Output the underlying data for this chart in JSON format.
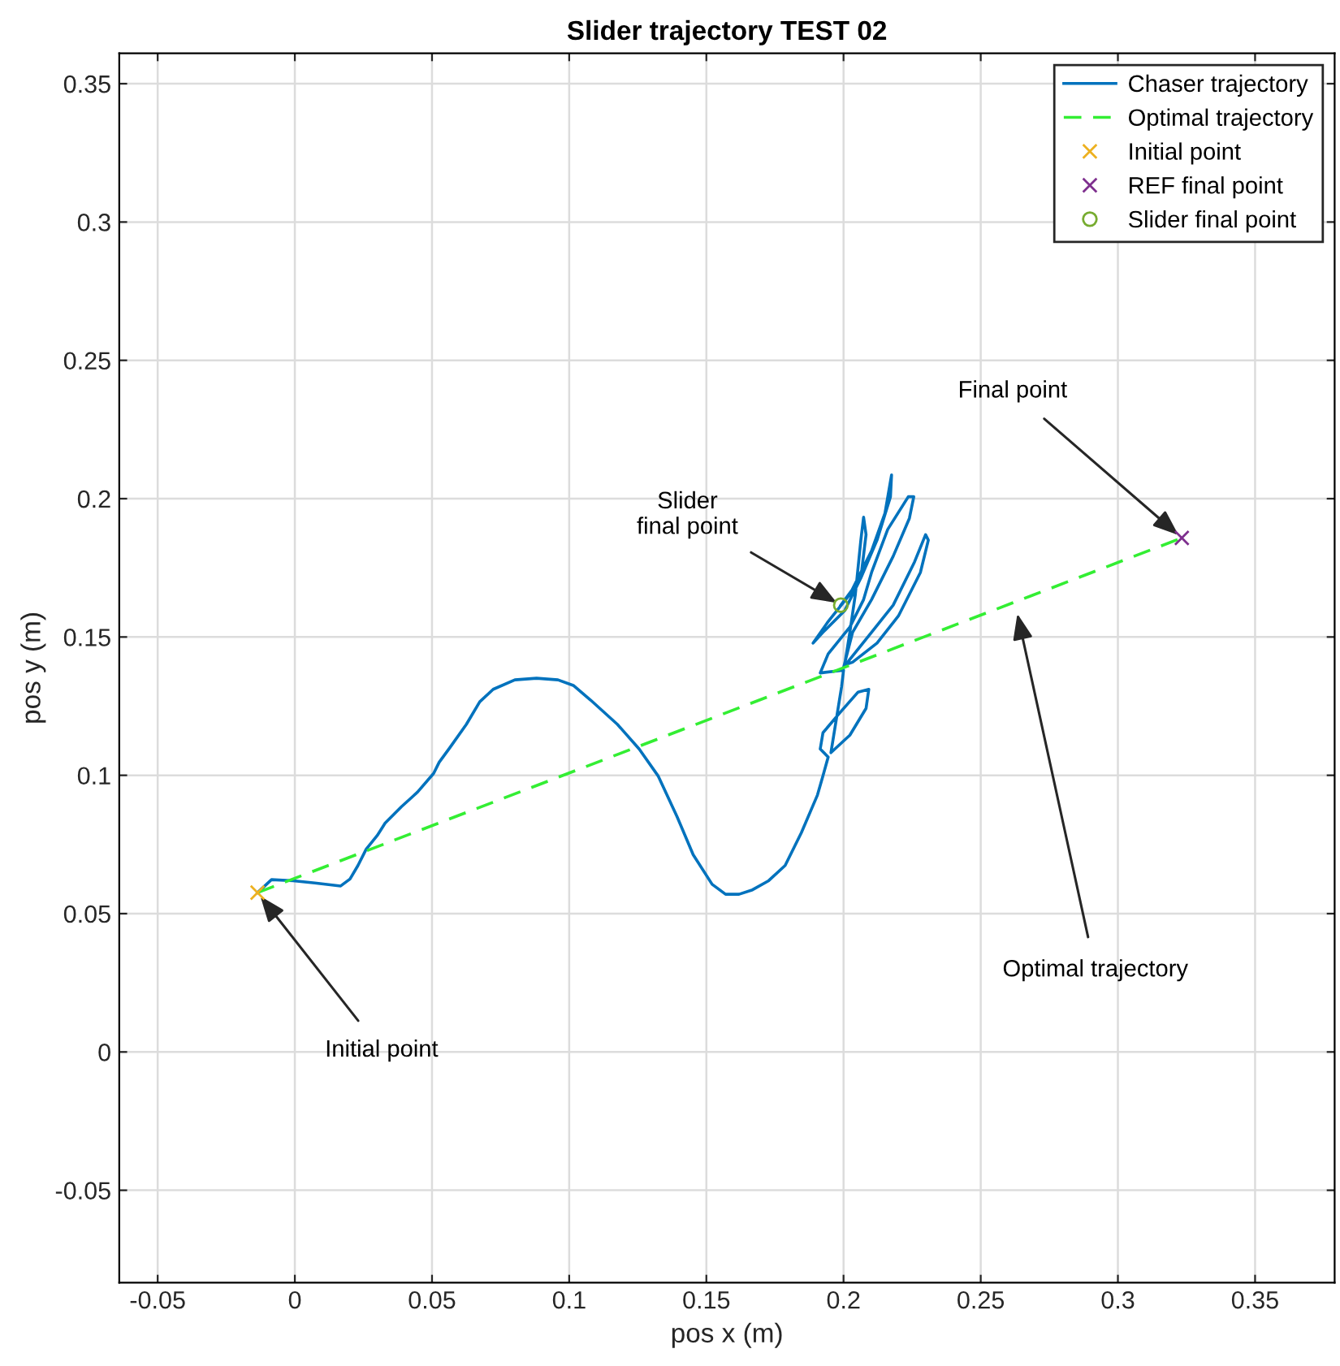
{
  "chart_data": {
    "type": "line",
    "title": "Slider trajectory TEST 02",
    "xlabel": "pos x (m)",
    "ylabel": "pos y (m)",
    "xlim": [
      -0.064,
      0.379
    ],
    "ylim": [
      -0.0834,
      0.361
    ],
    "xticks": [
      -0.05,
      0,
      0.05,
      0.1,
      0.15,
      0.2,
      0.25,
      0.3,
      0.35
    ],
    "yticks": [
      -0.05,
      0,
      0.05,
      0.1,
      0.15,
      0.2,
      0.25,
      0.3,
      0.35
    ],
    "grid": true,
    "legend": "top right",
    "series": [
      {
        "name": "Chaser trajectory",
        "color": "#0072bd",
        "line_style": "solid",
        "marker": "none",
        "x": [
          -0.0136,
          -0.0085,
          -0.0006,
          0.0073,
          0.0167,
          0.0201,
          0.023,
          0.026,
          0.03,
          0.0329,
          0.0388,
          0.0447,
          0.0506,
          0.0526,
          0.0565,
          0.0625,
          0.0674,
          0.0723,
          0.0802,
          0.0881,
          0.0959,
          0.1015,
          0.1078,
          0.1176,
          0.1255,
          0.1324,
          0.1393,
          0.1452,
          0.1521,
          0.157,
          0.1619,
          0.1668,
          0.1727,
          0.1787,
          0.1846,
          0.1905,
          0.1925,
          0.1944,
          0.1915,
          0.1925,
          0.1984,
          0.2053,
          0.2092,
          0.2082,
          0.2023,
          0.1954,
          0.1993,
          0.2,
          0.1915,
          0.1944,
          0.2023,
          0.2073,
          0.2102,
          0.2161,
          0.2236,
          0.2256,
          0.224,
          0.2181,
          0.2102,
          0.2033,
          0.2,
          0.2023,
          0.2102,
          0.2181,
          0.2259,
          0.2299,
          0.2309,
          0.228,
          0.22,
          0.2122,
          0.2033,
          0.2004,
          0.2023,
          0.2043,
          0.2063,
          0.2073,
          0.2082,
          0.2063,
          0.2004,
          0.1925,
          0.1889,
          0.1944,
          0.2023,
          0.2102,
          0.2151,
          0.2175,
          0.2171,
          0.2122,
          0.2063,
          0.199
        ],
        "values": [
          0.0576,
          0.0623,
          0.0619,
          0.0611,
          0.06,
          0.0625,
          0.0674,
          0.0733,
          0.0782,
          0.0827,
          0.0886,
          0.0939,
          0.1007,
          0.1047,
          0.11,
          0.1184,
          0.1266,
          0.1311,
          0.1345,
          0.1351,
          0.1345,
          0.1325,
          0.1272,
          0.1184,
          0.1095,
          0.0998,
          0.0851,
          0.0713,
          0.0606,
          0.057,
          0.057,
          0.0586,
          0.0619,
          0.0674,
          0.0792,
          0.0929,
          0.0998,
          0.1066,
          0.1095,
          0.1154,
          0.1223,
          0.1301,
          0.1311,
          0.1242,
          0.1145,
          0.1082,
          0.1321,
          0.138,
          0.137,
          0.1439,
          0.1536,
          0.1635,
          0.1733,
          0.1889,
          0.2007,
          0.2007,
          0.1929,
          0.1792,
          0.1635,
          0.1517,
          0.1389,
          0.1419,
          0.1517,
          0.1615,
          0.1772,
          0.187,
          0.185,
          0.1733,
          0.1576,
          0.1478,
          0.1409,
          0.1399,
          0.1517,
          0.1654,
          0.185,
          0.1933,
          0.187,
          0.1713,
          0.1595,
          0.1517,
          0.1478,
          0.1556,
          0.1654,
          0.1811,
          0.1948,
          0.2086,
          0.2007,
          0.185,
          0.1713,
          0.1615
        ]
      },
      {
        "name": "Optimal trajectory",
        "color": "#33ee33",
        "line_style": "dashed",
        "marker": "none",
        "x": [
          -0.0136,
          0.3233
        ],
        "values": [
          0.0576,
          0.1858
        ]
      },
      {
        "name": "Initial point",
        "type": "scatter",
        "color": "#edb120",
        "marker": "cross",
        "x": [
          -0.0136
        ],
        "values": [
          0.0576
        ]
      },
      {
        "name": "REF final point",
        "type": "scatter",
        "color": "#7e2f8e",
        "marker": "cross",
        "x": [
          0.3233
        ],
        "values": [
          0.1858
        ]
      },
      {
        "name": "Slider final point",
        "type": "scatter",
        "color": "#77ac30",
        "marker": "circle",
        "x": [
          0.199
        ],
        "values": [
          0.1615
        ]
      }
    ],
    "annotations": [
      {
        "text": "Final point",
        "x": 0.3233,
        "y": 0.1858
      },
      {
        "text": "Slider\nfinal point",
        "x": 0.199,
        "y": 0.1615
      },
      {
        "text": "Optimal trajectory",
        "x": 0.263,
        "y": 0.16
      },
      {
        "text": "Initial point",
        "x": -0.0136,
        "y": 0.0576
      }
    ]
  }
}
